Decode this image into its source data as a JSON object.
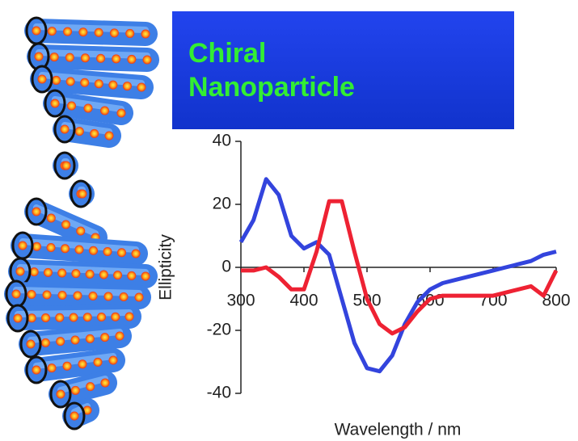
{
  "chart_data": {
    "type": "line",
    "title": [
      "Chiral",
      "Nanoparticle"
    ],
    "x_label": "Wavelength / nm",
    "y_label": "Ellipticity",
    "x": [
      300,
      320,
      340,
      360,
      380,
      400,
      420,
      440,
      460,
      480,
      500,
      520,
      540,
      560,
      580,
      600,
      620,
      640,
      660,
      680,
      700,
      720,
      740,
      760,
      780,
      800
    ],
    "series": [
      {
        "color": "#3344dd",
        "values": [
          8,
          15,
          28,
          23,
          10,
          6,
          8,
          4,
          -10,
          -24,
          -32,
          -33,
          -28,
          -18,
          -11,
          -7,
          -5,
          -4,
          -3,
          -2,
          -1,
          0,
          1,
          2,
          4,
          5
        ]
      },
      {
        "color": "#ee2233",
        "values": [
          -1,
          -1,
          0,
          -3,
          -7,
          -7,
          5,
          21,
          21,
          5,
          -10,
          -18,
          -21,
          -19,
          -14,
          -10,
          -9,
          -9,
          -9,
          -9,
          -9,
          -8,
          -7,
          -6,
          -9,
          -1
        ]
      }
    ],
    "xlim": [
      300,
      800
    ],
    "ylim": [
      -40,
      40
    ],
    "xticks": [
      300,
      400,
      500,
      600,
      700,
      800
    ],
    "yticks": [
      -40,
      -20,
      0,
      20,
      40
    ]
  }
}
